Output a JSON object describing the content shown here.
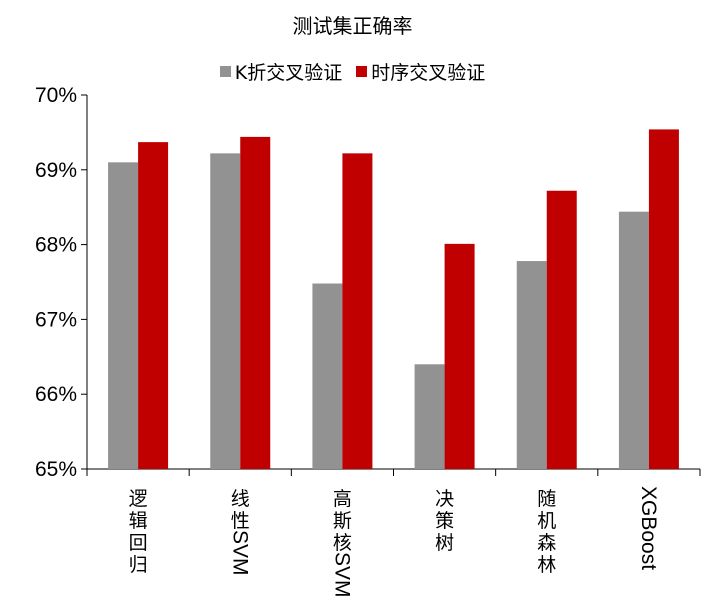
{
  "chart_data": {
    "type": "bar",
    "title": "测试集正确率",
    "xlabel": "",
    "ylabel": "",
    "ylim": [
      65,
      70
    ],
    "yticks": [
      "65%",
      "66%",
      "67%",
      "68%",
      "69%",
      "70%"
    ],
    "categories": [
      "逻辑回归",
      "线性SVM",
      "高斯核SVM",
      "决策树",
      "随机森林",
      "XGBoost"
    ],
    "series": [
      {
        "name": "K折交叉验证",
        "color": "#929292",
        "values": [
          69.1,
          69.22,
          67.48,
          66.4,
          67.78,
          68.44
        ]
      },
      {
        "name": "时序交叉验证",
        "color": "#c00000",
        "values": [
          69.37,
          69.44,
          69.22,
          68.01,
          68.72,
          69.54
        ]
      }
    ],
    "grid": false,
    "legend_position": "top"
  }
}
